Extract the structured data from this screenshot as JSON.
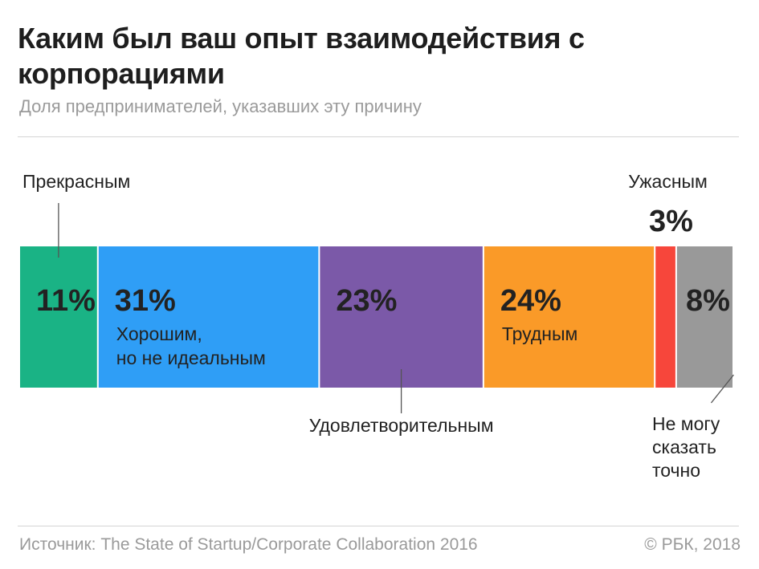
{
  "header": {
    "title": "Каким был ваш опыт взаимодействия с корпорациями",
    "subtitle": "Доля предпринимателей, указавших эту причину"
  },
  "footer": {
    "source": "Источник: The State of Startup/Corporate Collaboration 2016",
    "copyright": "© РБК, 2018"
  },
  "chart_data": {
    "type": "bar",
    "orientation": "stacked-horizontal",
    "unit": "%",
    "segments": [
      {
        "label": "Прекрасным",
        "value": 11,
        "value_label": "11%",
        "color": "#1ab385",
        "label_position": "above"
      },
      {
        "label": "Хорошим, но не идеальным",
        "label_lines": [
          "Хорошим,",
          "но не идеальным"
        ],
        "value": 31,
        "value_label": "31%",
        "color": "#2f9ef6",
        "label_position": "inside"
      },
      {
        "label": "Удовлетворительным",
        "value": 23,
        "value_label": "23%",
        "color": "#7b59a8",
        "label_position": "below"
      },
      {
        "label": "Трудным",
        "value": 24,
        "value_label": "24%",
        "color": "#fa9a28",
        "label_position": "inside"
      },
      {
        "label": "Ужасным",
        "value": 3,
        "value_label": "3%",
        "color": "#f7463b",
        "label_position": "above"
      },
      {
        "label": "Не могу сказать точно",
        "label_lines": [
          "Не могу",
          "сказать",
          "точно"
        ],
        "value": 8,
        "value_label": "8%",
        "color": "#999999",
        "label_position": "below"
      }
    ]
  }
}
